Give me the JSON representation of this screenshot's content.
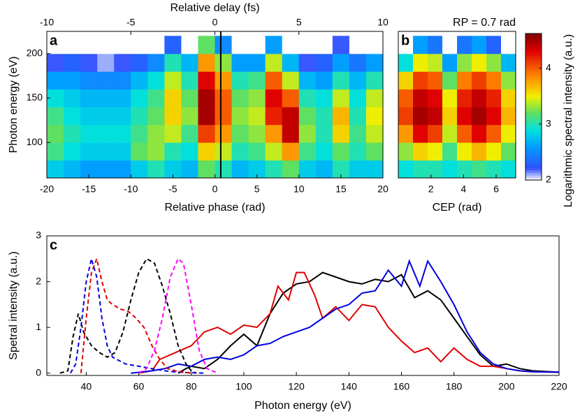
{
  "chart_data": [
    {
      "type": "heatmap",
      "panel_label": "a",
      "xlabel": "Relative phase (rad)",
      "ylabel": "Photon energy (eV)",
      "top_xlabel": "Relative delay (fs)",
      "xlim": [
        -20,
        20
      ],
      "xticks": [
        -20,
        -15,
        -10,
        -5,
        0,
        5,
        10,
        15,
        20
      ],
      "top_xlim": [
        -10,
        10
      ],
      "top_xticks": [
        -10,
        -5,
        0,
        5,
        10
      ],
      "ylim": [
        60,
        225
      ],
      "yticks": [
        100,
        150,
        200
      ],
      "marker_x": 0.7,
      "marker_color": "#000000",
      "x_edges": [
        -20,
        -18,
        -16,
        -14,
        -12,
        -10,
        -8,
        -6,
        -4,
        -2,
        0,
        2,
        4,
        6,
        8,
        10,
        12,
        14,
        16,
        18,
        20
      ],
      "y_edges": [
        60,
        80,
        100,
        120,
        140,
        160,
        180,
        200,
        220
      ],
      "z": [
        [
          2.8,
          2.7,
          2.6,
          2.6,
          2.6,
          2.8,
          3.0,
          2.8,
          2.7,
          3.2,
          3.0,
          2.7,
          2.8,
          3.0,
          3.2,
          2.8,
          2.7,
          3.0,
          2.8,
          2.8
        ],
        [
          3.1,
          2.9,
          2.8,
          2.8,
          2.8,
          3.2,
          3.3,
          3.0,
          2.9,
          3.6,
          3.4,
          3.0,
          3.1,
          3.4,
          3.8,
          3.1,
          2.9,
          3.2,
          3.0,
          3.2
        ],
        [
          3.2,
          3.0,
          2.9,
          2.9,
          2.9,
          3.1,
          3.3,
          3.4,
          3.1,
          4.1,
          3.8,
          3.2,
          3.3,
          3.8,
          4.4,
          3.3,
          3.0,
          3.6,
          3.1,
          3.4
        ],
        [
          3.1,
          2.9,
          2.8,
          2.8,
          2.8,
          3.0,
          3.2,
          3.6,
          3.3,
          4.5,
          4.0,
          3.3,
          3.4,
          4.2,
          4.4,
          3.2,
          3.0,
          3.7,
          3.0,
          3.5
        ],
        [
          2.9,
          2.8,
          2.7,
          2.7,
          2.7,
          2.9,
          3.1,
          3.6,
          3.2,
          4.5,
          4.0,
          3.2,
          3.3,
          4.3,
          4.0,
          3.0,
          2.9,
          3.4,
          2.9,
          3.4
        ],
        [
          2.6,
          2.6,
          2.5,
          2.5,
          2.5,
          2.7,
          2.9,
          3.4,
          3.0,
          4.3,
          3.8,
          3.0,
          3.1,
          4.0,
          3.4,
          2.7,
          2.6,
          3.0,
          2.7,
          3.0
        ],
        [
          2.2,
          2.3,
          2.2,
          2.1,
          2.2,
          2.3,
          2.5,
          3.0,
          2.7,
          3.8,
          3.3,
          2.6,
          2.6,
          3.4,
          2.7,
          2.2,
          2.3,
          2.6,
          2.4,
          2.6
        ],
        [
          2.0,
          2.0,
          2.0,
          2.0,
          2.0,
          2.0,
          2.0,
          2.3,
          2.0,
          3.2,
          2.5,
          2.0,
          2.0,
          2.6,
          2.0,
          2.0,
          2.0,
          2.2,
          2.0,
          2.0
        ]
      ]
    },
    {
      "type": "heatmap",
      "panel_label": "b",
      "title": "RP = 0.7 rad",
      "xlabel": "CEP (rad)",
      "xlim": [
        0,
        7.2
      ],
      "xticks": [
        2,
        4,
        6
      ],
      "ylim": [
        60,
        225
      ],
      "x_edges": [
        0,
        0.9,
        1.8,
        2.7,
        3.6,
        4.5,
        5.4,
        6.3,
        7.2
      ],
      "y_edges": [
        60,
        80,
        100,
        120,
        140,
        160,
        180,
        200,
        220
      ],
      "z": [
        [
          2.9,
          3.0,
          3.0,
          2.9,
          3.0,
          3.1,
          3.0,
          2.9
        ],
        [
          3.3,
          3.6,
          3.5,
          3.1,
          3.5,
          3.7,
          3.5,
          3.2
        ],
        [
          3.8,
          4.3,
          4.1,
          3.4,
          4.0,
          4.3,
          4.0,
          3.5
        ],
        [
          4.1,
          4.5,
          4.4,
          3.6,
          4.3,
          4.5,
          4.3,
          3.7
        ],
        [
          4.0,
          4.4,
          4.3,
          3.5,
          4.2,
          4.4,
          4.2,
          3.6
        ],
        [
          3.6,
          4.1,
          4.0,
          3.2,
          3.9,
          4.1,
          3.9,
          3.3
        ],
        [
          2.9,
          3.5,
          3.4,
          2.6,
          3.3,
          3.5,
          3.3,
          2.7
        ],
        [
          2.0,
          2.6,
          2.4,
          2.0,
          2.4,
          2.6,
          2.3,
          2.0
        ]
      ],
      "colorbar": {
        "label": "Logarithmic spectral intensity (a.u.)",
        "lim": [
          2,
          4.62
        ],
        "ticks": [
          2,
          3,
          4
        ]
      }
    },
    {
      "type": "line",
      "panel_label": "c",
      "xlabel": "Photon energy (eV)",
      "ylabel": "Spetral intensity (a.u.)",
      "xlim": [
        25,
        220
      ],
      "xticks": [
        40,
        60,
        80,
        100,
        120,
        140,
        160,
        180,
        200,
        220
      ],
      "ylim": [
        -0.05,
        3
      ],
      "yticks": [
        0,
        1,
        2,
        3
      ],
      "series": [
        {
          "color": "#000000",
          "dashed": false,
          "x": [
            75,
            78,
            80,
            85,
            90,
            95,
            100,
            105,
            110,
            115,
            120,
            125,
            130,
            135,
            140,
            145,
            150,
            155,
            160,
            165,
            170,
            175,
            180,
            185,
            190,
            195,
            200,
            205,
            210,
            220
          ],
          "values": [
            0,
            0.1,
            0.15,
            0.1,
            0.3,
            0.6,
            0.85,
            0.6,
            1.3,
            1.75,
            1.95,
            2.0,
            2.2,
            2.1,
            2.0,
            1.95,
            2.05,
            2.0,
            2.15,
            1.65,
            1.8,
            1.6,
            1.2,
            0.8,
            0.4,
            0.15,
            0.2,
            0.1,
            0.05,
            0.02
          ]
        },
        {
          "color": "#e00000",
          "dashed": false,
          "x": [
            60,
            65,
            68,
            72,
            76,
            80,
            85,
            90,
            95,
            100,
            105,
            110,
            113,
            117,
            120,
            123,
            127,
            130,
            135,
            140,
            145,
            150,
            155,
            160,
            165,
            170,
            175,
            180,
            185,
            190,
            195,
            200,
            205,
            210,
            220
          ],
          "values": [
            0,
            0.05,
            0.3,
            0.4,
            0.5,
            0.6,
            0.9,
            1.0,
            0.85,
            1.05,
            1.0,
            1.3,
            1.9,
            1.6,
            2.2,
            2.2,
            1.7,
            1.2,
            1.45,
            1.15,
            1.5,
            1.45,
            1.0,
            0.7,
            0.45,
            0.55,
            0.25,
            0.55,
            0.3,
            0.15,
            0.15,
            0.1,
            0.05,
            0.03,
            0.02
          ]
        },
        {
          "color": "#0000e0",
          "dashed": false,
          "x": [
            57,
            65,
            70,
            75,
            80,
            85,
            90,
            95,
            100,
            105,
            110,
            115,
            120,
            125,
            130,
            135,
            140,
            145,
            150,
            155,
            160,
            163,
            167,
            170,
            175,
            180,
            185,
            190,
            195,
            200,
            205,
            210,
            220
          ],
          "values": [
            0,
            0.05,
            0.1,
            0.2,
            0.15,
            0.3,
            0.35,
            0.3,
            0.4,
            0.6,
            0.65,
            0.8,
            0.9,
            1.0,
            1.2,
            1.4,
            1.5,
            1.75,
            1.8,
            2.25,
            1.9,
            2.45,
            1.9,
            2.45,
            2.0,
            1.5,
            0.9,
            0.45,
            0.2,
            0.1,
            0.05,
            0.03,
            0.02
          ]
        },
        {
          "color": "#000000",
          "dashed": true,
          "x": [
            30,
            33,
            35,
            37,
            39,
            42,
            45,
            48,
            51,
            54,
            57,
            60,
            63,
            66,
            69,
            72,
            75,
            78,
            80,
            82
          ],
          "values": [
            0,
            0.05,
            0.8,
            1.3,
            0.9,
            0.6,
            0.45,
            0.35,
            0.45,
            0.9,
            1.6,
            2.2,
            2.5,
            2.4,
            1.9,
            1.3,
            0.6,
            0.2,
            0.05,
            0
          ]
        },
        {
          "color": "#0000e0",
          "dashed": true,
          "x": [
            34,
            36,
            38,
            40,
            42,
            44,
            46,
            48,
            50,
            55,
            60,
            65,
            70,
            75,
            80,
            85
          ],
          "values": [
            0,
            0.2,
            1.0,
            2.0,
            2.5,
            2.1,
            1.2,
            0.6,
            0.35,
            0.2,
            0.15,
            0.1,
            0.05,
            0.02,
            0.01,
            0
          ]
        },
        {
          "color": "#e00000",
          "dashed": true,
          "x": [
            38,
            40,
            42,
            44,
            46,
            48,
            50,
            53,
            56,
            59,
            62,
            65,
            68,
            71,
            74,
            77,
            80
          ],
          "values": [
            0,
            1.2,
            2.2,
            2.5,
            2.0,
            1.6,
            1.5,
            1.4,
            1.35,
            1.2,
            1.0,
            0.6,
            0.3,
            0.1,
            0.05,
            0.02,
            0
          ]
        },
        {
          "color": "#ff00ff",
          "dashed": true,
          "x": [
            60,
            63,
            66,
            69,
            72,
            75,
            77,
            80,
            83,
            86,
            90
          ],
          "values": [
            0,
            0.1,
            0.5,
            1.2,
            2.1,
            2.5,
            2.4,
            1.5,
            0.5,
            0.1,
            0
          ]
        }
      ]
    }
  ]
}
